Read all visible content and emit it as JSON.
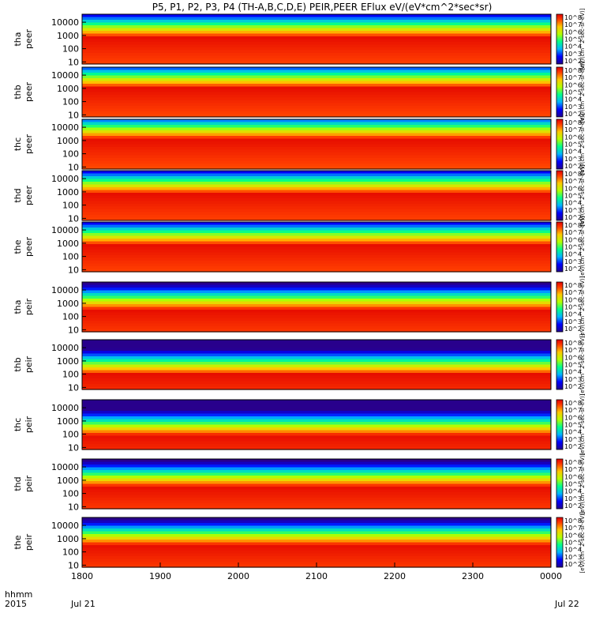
{
  "chart_data": {
    "type": "heatmap",
    "title": "P5, P1, P2, P3, P4 (TH-A,B,C,D,E) PEIR,PEER EFlux eV/(eV*cm^2*sec*sr)",
    "x_label_top": "hhmm",
    "x_label_bottom": "2015",
    "x_ticks": [
      "1800",
      "1900",
      "2000",
      "2100",
      "2200",
      "2300",
      "0000"
    ],
    "x_date_labels": {
      "start": "Jul 21",
      "end": "Jul 22"
    },
    "y_ticks": [
      "10000",
      "1000",
      "100",
      "10"
    ],
    "colorbar_label": "[eV/(cm^2-sec-sr-eV)]",
    "colorbar_ticks": [
      "10^8",
      "10^7",
      "10^6",
      "10^5",
      "10^4",
      "10^3",
      "10^2"
    ],
    "panels": [
      {
        "probe": "tha",
        "kind": "peer",
        "ylabel_top": "tha",
        "ylabel_bottom": "peer",
        "ylim": [
          7,
          40000
        ],
        "band_level": 0.45
      },
      {
        "probe": "thb",
        "kind": "peer",
        "ylabel_top": "thb",
        "ylabel_bottom": "peer",
        "ylim": [
          7,
          40000
        ],
        "band_level": 0.4
      },
      {
        "probe": "thc",
        "kind": "peer",
        "ylabel_top": "thc",
        "ylabel_bottom": "peer",
        "ylim": [
          7,
          40000
        ],
        "band_level": 0.38
      },
      {
        "probe": "thd",
        "kind": "peer",
        "ylabel_top": "thd",
        "ylabel_bottom": "peer",
        "ylim": [
          7,
          40000
        ],
        "band_level": 0.45
      },
      {
        "probe": "the",
        "kind": "peer",
        "ylabel_top": "the",
        "ylabel_bottom": "peer",
        "ylim": [
          7,
          40000
        ],
        "band_level": 0.45
      },
      {
        "probe": "tha",
        "kind": "peir",
        "ylabel_top": "tha",
        "ylabel_bottom": "peir",
        "ylim": [
          7,
          40000
        ],
        "band_level": 0.55
      },
      {
        "probe": "thb",
        "kind": "peir",
        "ylabel_top": "thb",
        "ylabel_bottom": "peir",
        "ylim": [
          7,
          40000
        ],
        "band_level": 0.7
      },
      {
        "probe": "thc",
        "kind": "peir",
        "ylabel_top": "thc",
        "ylabel_bottom": "peir",
        "ylim": [
          7,
          40000
        ],
        "band_level": 0.72
      },
      {
        "probe": "thd",
        "kind": "peir",
        "ylabel_top": "thd",
        "ylabel_bottom": "peir",
        "ylim": [
          7,
          40000
        ],
        "band_level": 0.55
      },
      {
        "probe": "the",
        "kind": "peir",
        "ylabel_top": "the",
        "ylabel_bottom": "peir",
        "ylim": [
          7,
          40000
        ],
        "band_level": 0.55
      }
    ]
  }
}
